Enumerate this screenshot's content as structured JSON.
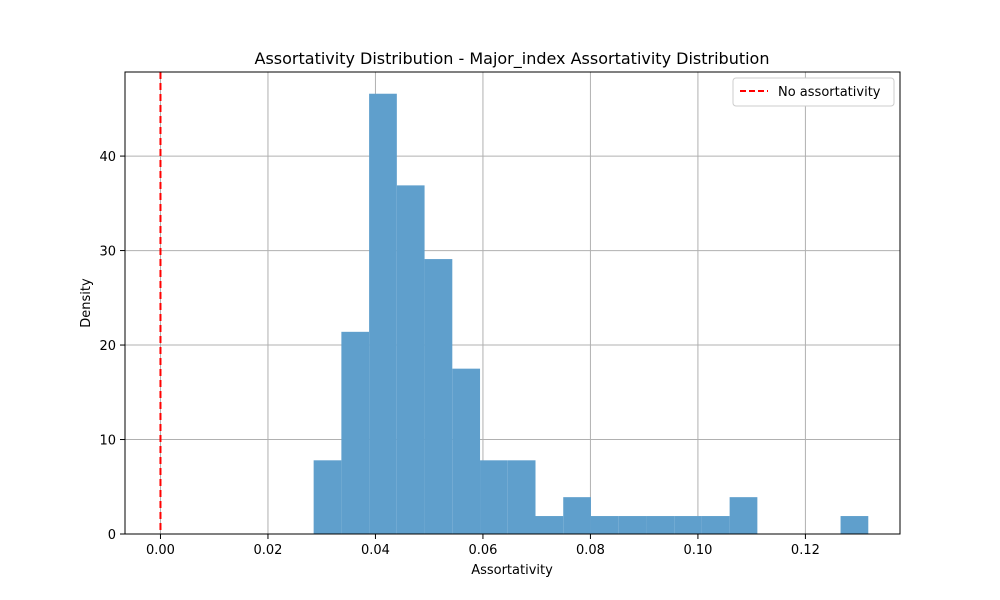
{
  "chart_data": {
    "type": "bar",
    "title": "Assortativity Distribution - Major_index Assortativity Distribution",
    "xlabel": "Assortativity",
    "ylabel": "Density",
    "xlim": [
      -0.0066,
      0.1376
    ],
    "ylim": [
      0,
      48.9
    ],
    "xticks": [
      0.0,
      0.02,
      0.04,
      0.06,
      0.08,
      0.1,
      0.12
    ],
    "xtick_labels": [
      "0.00",
      "0.02",
      "0.04",
      "0.06",
      "0.08",
      "0.10",
      "0.12"
    ],
    "yticks": [
      0,
      10,
      20,
      30,
      40
    ],
    "ytick_labels": [
      "0",
      "10",
      "20",
      "30",
      "40"
    ],
    "grid": true,
    "bar_color": "#5f9fcc",
    "bins": {
      "start": 0.0285,
      "width": 0.00516,
      "values": [
        7.8,
        21.4,
        46.6,
        36.9,
        29.1,
        17.5,
        7.8,
        7.8,
        1.9,
        3.9,
        1.9,
        1.9,
        1.9,
        1.9,
        1.9,
        3.9,
        0,
        0,
        0,
        1.9
      ]
    },
    "reference_line": {
      "x": 0.0,
      "label": "No assortativity",
      "color": "#ff0000",
      "style": "dashed"
    },
    "legend": {
      "position": "top-right",
      "entries": [
        "No assortativity"
      ]
    }
  }
}
